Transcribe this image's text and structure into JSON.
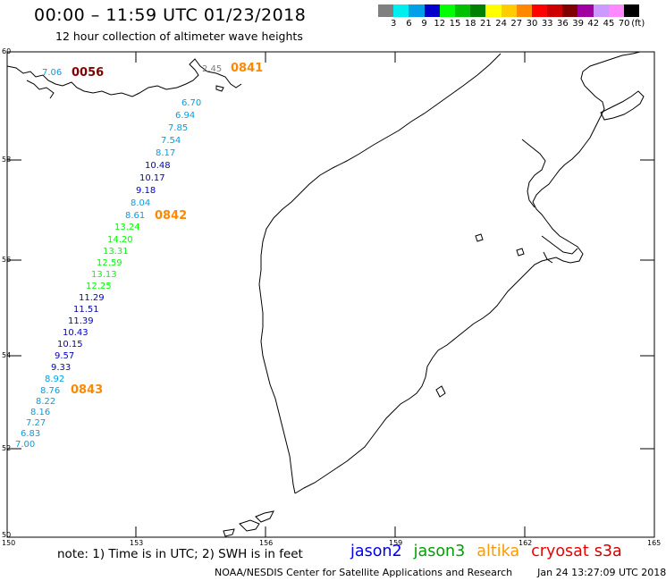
{
  "header": {
    "title": "00:00 – 11:59 UTC 01/23/2018",
    "subtitle": "12 hour collection of altimeter wave heights"
  },
  "colorbar": {
    "colors": [
      "#808080",
      "#00eeee",
      "#00a0e8",
      "#0000cc",
      "#00ff00",
      "#00c000",
      "#008000",
      "#ffff00",
      "#ffcc00",
      "#ff8800",
      "#ff0000",
      "#cc0000",
      "#800000",
      "#a000a0",
      "#cc99ff",
      "#ff88ff",
      "#000000"
    ],
    "labels": [
      "3",
      "6",
      "9",
      "12",
      "15",
      "18",
      "21",
      "24",
      "27",
      "30",
      "33",
      "36",
      "39",
      "42",
      "45",
      "70"
    ],
    "unit": "(ft)"
  },
  "axes": {
    "lon_ticks": [
      "150",
      "153",
      "156",
      "159",
      "162",
      "165"
    ],
    "lat_ticks": [
      "60",
      "58",
      "56",
      "54",
      "52",
      "50"
    ]
  },
  "passes": [
    {
      "time": "0056",
      "color": "#800000"
    },
    {
      "time": "0841",
      "color": "#ff8800"
    },
    {
      "time": "0842",
      "color": "#ff8800"
    },
    {
      "time": "0843",
      "color": "#ff8800"
    }
  ],
  "wave_heights": [
    {
      "value": "7.06",
      "color": "#00a0e8"
    },
    {
      "value": "2.45",
      "color": "#808080"
    },
    {
      "value": "6.70",
      "color": "#00a0e8"
    },
    {
      "value": "6.94",
      "color": "#00a0e8"
    },
    {
      "value": "7.85",
      "color": "#00a0e8"
    },
    {
      "value": "7.54",
      "color": "#00a0e8"
    },
    {
      "value": "8.17",
      "color": "#00a0e8"
    },
    {
      "value": "10.48",
      "color": "#0000cc"
    },
    {
      "value": "10.17",
      "color": "#0000cc"
    },
    {
      "value": "9.18",
      "color": "#0000cc"
    },
    {
      "value": "8.04",
      "color": "#00a0e8"
    },
    {
      "value": "8.61",
      "color": "#00a0e8"
    },
    {
      "value": "13.24",
      "color": "#00ff00"
    },
    {
      "value": "14.20",
      "color": "#00ff00"
    },
    {
      "value": "13.31",
      "color": "#00ff00"
    },
    {
      "value": "12.59",
      "color": "#00ff00"
    },
    {
      "value": "13.13",
      "color": "#00ff00"
    },
    {
      "value": "12.25",
      "color": "#00ff00"
    },
    {
      "value": "11.29",
      "color": "#0000cc"
    },
    {
      "value": "11.51",
      "color": "#0000cc"
    },
    {
      "value": "11.39",
      "color": "#0000cc"
    },
    {
      "value": "10.43",
      "color": "#0000cc"
    },
    {
      "value": "10.15",
      "color": "#0000cc"
    },
    {
      "value": "9.57",
      "color": "#0000cc"
    },
    {
      "value": "9.33",
      "color": "#0000cc"
    },
    {
      "value": "8.92",
      "color": "#00a0e8"
    },
    {
      "value": "8.76",
      "color": "#00a0e8"
    },
    {
      "value": "8.22",
      "color": "#00a0e8"
    },
    {
      "value": "8.16",
      "color": "#00a0e8"
    },
    {
      "value": "7.27",
      "color": "#00a0e8"
    },
    {
      "value": "6.83",
      "color": "#00a0e8"
    },
    {
      "value": "7.00",
      "color": "#00a0e8"
    }
  ],
  "note": "note: 1) Time is in UTC; 2) SWH is in feet",
  "satellites": [
    {
      "name": "jason2",
      "color": "#0000ee"
    },
    {
      "name": "jason3",
      "color": "#00a000"
    },
    {
      "name": "altika",
      "color": "#ff9900"
    },
    {
      "name": "cryosat",
      "color": "#ee0000"
    },
    {
      "name": "s3a",
      "color": "#cc0000"
    }
  ],
  "footer": {
    "credit": "NOAA/NESDIS Center for Satellite Applications and Research",
    "timestamp": "Jan 24 13:27:09 UTC 2018"
  }
}
